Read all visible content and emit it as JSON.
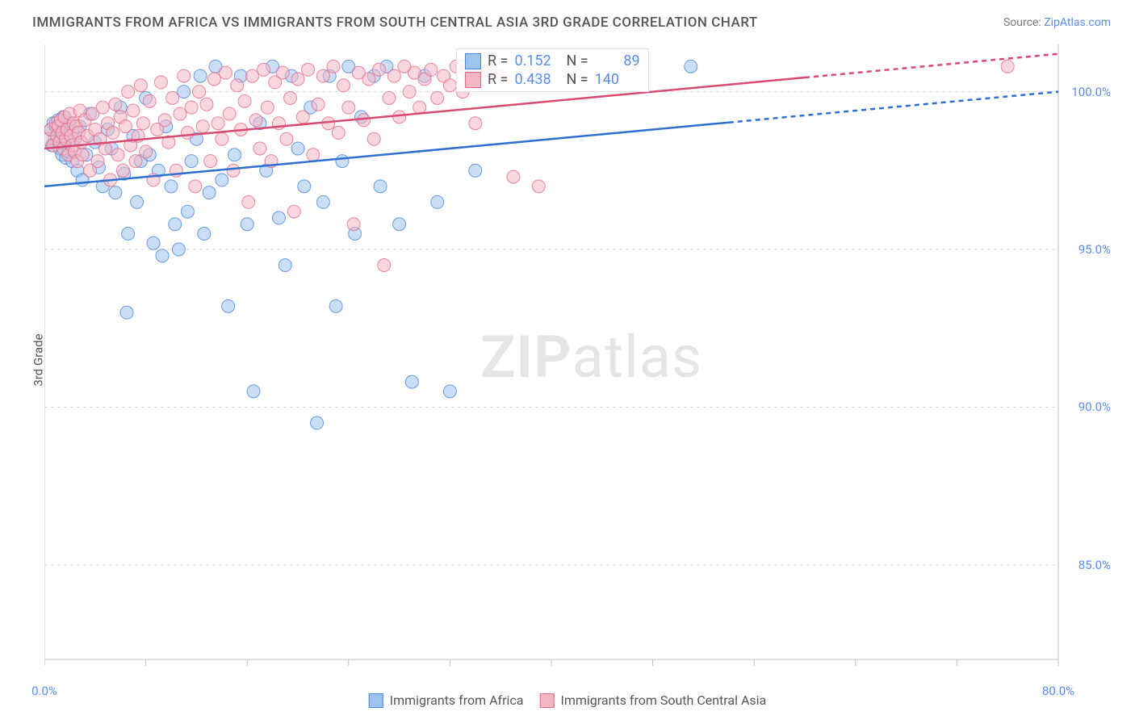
{
  "title": "IMMIGRANTS FROM AFRICA VS IMMIGRANTS FROM SOUTH CENTRAL ASIA 3RD GRADE CORRELATION CHART",
  "source_prefix": "Source: ",
  "source_link": "ZipAtlas.com",
  "ylabel": "3rd Grade",
  "watermark_a": "ZIP",
  "watermark_b": "atlas",
  "chart": {
    "type": "scatter",
    "xlim": [
      0,
      80
    ],
    "ylim": [
      82,
      101.5
    ],
    "xticks": [
      0,
      80
    ],
    "xtick_labels": [
      "0.0%",
      "80.0%"
    ],
    "xtick_minor": [
      8,
      16,
      24,
      32,
      40,
      48,
      56,
      64,
      72
    ],
    "yticks": [
      85,
      90,
      95,
      100
    ],
    "ytick_labels": [
      "85.0%",
      "90.0%",
      "95.0%",
      "100.0%"
    ],
    "plot_bg": "#ffffff",
    "grid_color": "#d9d9d9",
    "axis_color": "#bfbfbf",
    "marker_radius": 8,
    "marker_opacity": 0.55,
    "series": [
      {
        "name": "Immigrants from Africa",
        "fill": "#9ec3ed",
        "stroke": "#4a86d9",
        "line_color": "#2e6fd1",
        "R": "0.152",
        "N": "89",
        "regression": {
          "x1": 0,
          "y1": 97.0,
          "x2": 80,
          "y2": 100.0,
          "solid_until": 54
        },
        "points": [
          [
            0.5,
            98.8
          ],
          [
            0.6,
            98.3
          ],
          [
            0.7,
            99.0
          ],
          [
            0.8,
            98.5
          ],
          [
            0.9,
            98.9
          ],
          [
            1.0,
            98.6
          ],
          [
            1.1,
            99.1
          ],
          [
            1.2,
            98.2
          ],
          [
            1.3,
            98.7
          ],
          [
            1.4,
            98.0
          ],
          [
            1.5,
            99.2
          ],
          [
            1.6,
            98.4
          ],
          [
            1.7,
            97.9
          ],
          [
            1.8,
            98.8
          ],
          [
            1.9,
            98.1
          ],
          [
            2.0,
            99.0
          ],
          [
            2.2,
            97.8
          ],
          [
            2.4,
            98.5
          ],
          [
            2.6,
            97.5
          ],
          [
            2.8,
            98.9
          ],
          [
            3.0,
            97.2
          ],
          [
            3.3,
            98.0
          ],
          [
            3.6,
            99.3
          ],
          [
            4.0,
            98.4
          ],
          [
            4.3,
            97.6
          ],
          [
            4.6,
            97.0
          ],
          [
            5.0,
            98.8
          ],
          [
            5.3,
            98.2
          ],
          [
            5.6,
            96.8
          ],
          [
            6.0,
            99.5
          ],
          [
            6.3,
            97.4
          ],
          [
            6.6,
            95.5
          ],
          [
            7.0,
            98.6
          ],
          [
            7.3,
            96.5
          ],
          [
            7.6,
            97.8
          ],
          [
            8.0,
            99.8
          ],
          [
            8.3,
            98.0
          ],
          [
            8.6,
            95.2
          ],
          [
            9.0,
            97.5
          ],
          [
            9.3,
            94.8
          ],
          [
            9.6,
            98.9
          ],
          [
            10.0,
            97.0
          ],
          [
            10.3,
            95.8
          ],
          [
            10.6,
            95.0
          ],
          [
            11.0,
            100.0
          ],
          [
            11.3,
            96.2
          ],
          [
            11.6,
            97.8
          ],
          [
            12.0,
            98.5
          ],
          [
            12.3,
            100.5
          ],
          [
            12.6,
            95.5
          ],
          [
            13.0,
            96.8
          ],
          [
            13.5,
            100.8
          ],
          [
            14.0,
            97.2
          ],
          [
            14.5,
            93.2
          ],
          [
            15.0,
            98.0
          ],
          [
            15.5,
            100.5
          ],
          [
            16.0,
            95.8
          ],
          [
            16.5,
            90.5
          ],
          [
            17.0,
            99.0
          ],
          [
            17.5,
            97.5
          ],
          [
            18.0,
            100.8
          ],
          [
            18.5,
            96.0
          ],
          [
            19.0,
            94.5
          ],
          [
            19.5,
            100.5
          ],
          [
            20.0,
            98.2
          ],
          [
            20.5,
            97.0
          ],
          [
            21.0,
            99.5
          ],
          [
            21.5,
            89.5
          ],
          [
            22.0,
            96.5
          ],
          [
            22.5,
            100.5
          ],
          [
            23.0,
            93.2
          ],
          [
            23.5,
            97.8
          ],
          [
            24.0,
            100.8
          ],
          [
            24.5,
            95.5
          ],
          [
            25.0,
            99.2
          ],
          [
            26.0,
            100.5
          ],
          [
            26.5,
            97.0
          ],
          [
            27.0,
            100.8
          ],
          [
            28.0,
            95.8
          ],
          [
            29.0,
            90.8
          ],
          [
            30.0,
            100.5
          ],
          [
            31.0,
            96.5
          ],
          [
            32.0,
            90.5
          ],
          [
            33.0,
            100.8
          ],
          [
            34.0,
            97.5
          ],
          [
            35.0,
            100.5
          ],
          [
            51.0,
            100.8
          ],
          [
            6.5,
            93.0
          ]
        ]
      },
      {
        "name": "Immigrants from South Central Asia",
        "fill": "#f4b6c5",
        "stroke": "#e26a8a",
        "line_color": "#d94a72",
        "R": "0.438",
        "N": "140",
        "regression": {
          "x1": 0,
          "y1": 98.2,
          "x2": 80,
          "y2": 101.2,
          "solid_until": 60
        },
        "points": [
          [
            0.3,
            98.5
          ],
          [
            0.5,
            98.8
          ],
          [
            0.7,
            98.3
          ],
          [
            0.9,
            99.0
          ],
          [
            1.0,
            98.6
          ],
          [
            1.1,
            98.9
          ],
          [
            1.2,
            98.4
          ],
          [
            1.3,
            99.1
          ],
          [
            1.4,
            98.7
          ],
          [
            1.5,
            98.2
          ],
          [
            1.6,
            99.2
          ],
          [
            1.7,
            98.5
          ],
          [
            1.8,
            98.8
          ],
          [
            1.9,
            98.0
          ],
          [
            2.0,
            99.3
          ],
          [
            2.1,
            98.6
          ],
          [
            2.2,
            98.3
          ],
          [
            2.3,
            99.0
          ],
          [
            2.4,
            98.1
          ],
          [
            2.5,
            98.9
          ],
          [
            2.6,
            97.8
          ],
          [
            2.7,
            98.7
          ],
          [
            2.8,
            99.4
          ],
          [
            2.9,
            98.4
          ],
          [
            3.0,
            98.0
          ],
          [
            3.2,
            99.1
          ],
          [
            3.4,
            98.6
          ],
          [
            3.6,
            97.5
          ],
          [
            3.8,
            99.3
          ],
          [
            4.0,
            98.8
          ],
          [
            4.2,
            97.8
          ],
          [
            4.4,
            98.5
          ],
          [
            4.6,
            99.5
          ],
          [
            4.8,
            98.2
          ],
          [
            5.0,
            99.0
          ],
          [
            5.2,
            97.2
          ],
          [
            5.4,
            98.7
          ],
          [
            5.6,
            99.6
          ],
          [
            5.8,
            98.0
          ],
          [
            6.0,
            99.2
          ],
          [
            6.2,
            97.5
          ],
          [
            6.4,
            98.9
          ],
          [
            6.6,
            100.0
          ],
          [
            6.8,
            98.3
          ],
          [
            7.0,
            99.4
          ],
          [
            7.2,
            97.8
          ],
          [
            7.4,
            98.6
          ],
          [
            7.6,
            100.2
          ],
          [
            7.8,
            99.0
          ],
          [
            8.0,
            98.1
          ],
          [
            8.3,
            99.7
          ],
          [
            8.6,
            97.2
          ],
          [
            8.9,
            98.8
          ],
          [
            9.2,
            100.3
          ],
          [
            9.5,
            99.1
          ],
          [
            9.8,
            98.4
          ],
          [
            10.1,
            99.8
          ],
          [
            10.4,
            97.5
          ],
          [
            10.7,
            99.3
          ],
          [
            11.0,
            100.5
          ],
          [
            11.3,
            98.7
          ],
          [
            11.6,
            99.5
          ],
          [
            11.9,
            97.0
          ],
          [
            12.2,
            100.0
          ],
          [
            12.5,
            98.9
          ],
          [
            12.8,
            99.6
          ],
          [
            13.1,
            97.8
          ],
          [
            13.4,
            100.4
          ],
          [
            13.7,
            99.0
          ],
          [
            14.0,
            98.5
          ],
          [
            14.3,
            100.6
          ],
          [
            14.6,
            99.3
          ],
          [
            14.9,
            97.5
          ],
          [
            15.2,
            100.2
          ],
          [
            15.5,
            98.8
          ],
          [
            15.8,
            99.7
          ],
          [
            16.1,
            96.5
          ],
          [
            16.4,
            100.5
          ],
          [
            16.7,
            99.1
          ],
          [
            17.0,
            98.2
          ],
          [
            17.3,
            100.7
          ],
          [
            17.6,
            99.5
          ],
          [
            17.9,
            97.8
          ],
          [
            18.2,
            100.3
          ],
          [
            18.5,
            99.0
          ],
          [
            18.8,
            100.6
          ],
          [
            19.1,
            98.5
          ],
          [
            19.4,
            99.8
          ],
          [
            19.7,
            96.2
          ],
          [
            20.0,
            100.4
          ],
          [
            20.4,
            99.2
          ],
          [
            20.8,
            100.7
          ],
          [
            21.2,
            98.0
          ],
          [
            21.6,
            99.6
          ],
          [
            22.0,
            100.5
          ],
          [
            22.4,
            99.0
          ],
          [
            22.8,
            100.8
          ],
          [
            23.2,
            98.7
          ],
          [
            23.6,
            100.2
          ],
          [
            24.0,
            99.5
          ],
          [
            24.4,
            95.8
          ],
          [
            24.8,
            100.6
          ],
          [
            25.2,
            99.1
          ],
          [
            25.6,
            100.4
          ],
          [
            26.0,
            98.5
          ],
          [
            26.4,
            100.7
          ],
          [
            26.8,
            94.5
          ],
          [
            27.2,
            99.8
          ],
          [
            27.6,
            100.5
          ],
          [
            28.0,
            99.2
          ],
          [
            28.4,
            100.8
          ],
          [
            28.8,
            100.0
          ],
          [
            29.2,
            100.6
          ],
          [
            29.6,
            99.5
          ],
          [
            30.0,
            100.4
          ],
          [
            30.5,
            100.7
          ],
          [
            31.0,
            99.8
          ],
          [
            31.5,
            100.5
          ],
          [
            32.0,
            100.2
          ],
          [
            32.5,
            100.8
          ],
          [
            33.0,
            100.0
          ],
          [
            33.5,
            100.6
          ],
          [
            34.0,
            99.0
          ],
          [
            34.5,
            100.4
          ],
          [
            35.0,
            100.7
          ],
          [
            36.0,
            100.5
          ],
          [
            37.0,
            97.3
          ],
          [
            38.0,
            100.6
          ],
          [
            39.0,
            97.0
          ],
          [
            76.0,
            100.8
          ]
        ]
      }
    ]
  },
  "legend": {
    "series1_label": "Immigrants from Africa",
    "series2_label": "Immigrants from South Central Asia"
  },
  "stats_labels": {
    "R": "R =",
    "N": "N ="
  }
}
